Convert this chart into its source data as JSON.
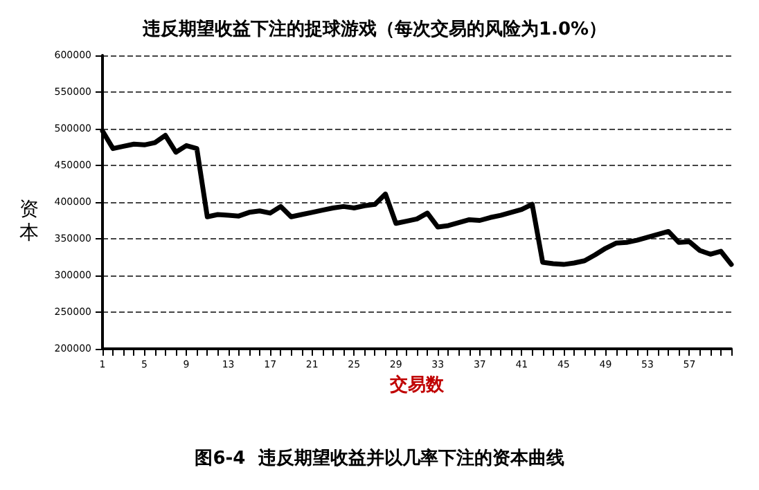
{
  "chart_data": {
    "type": "line",
    "title": "违反期望收益下注的捉球游戏（每次交易的风险为1.0%）",
    "xlabel": "交易数",
    "ylabel": "资本",
    "annotations": [
      "图6-4  违反期望收益并以几率下注的资本曲线"
    ],
    "categories": [
      "1",
      null,
      null,
      null,
      "5",
      null,
      null,
      null,
      "9",
      null,
      null,
      null,
      "13",
      null,
      null,
      null,
      "17",
      null,
      null,
      null,
      "21",
      null,
      null,
      null,
      "25",
      null,
      null,
      null,
      "29",
      null,
      null,
      null,
      "33",
      null,
      null,
      null,
      "37",
      null,
      null,
      null,
      "41",
      null,
      null,
      null,
      "45",
      null,
      null,
      null,
      "49",
      null,
      null,
      null,
      "53",
      null,
      null,
      null,
      "57",
      null,
      null,
      null,
      null
    ],
    "series": [
      {
        "color": "#000000",
        "values": [
          497000,
          473000,
          476000,
          479000,
          478000,
          481000,
          491000,
          468000,
          477000,
          473000,
          380000,
          383000,
          382000,
          381000,
          386000,
          388000,
          385000,
          394000,
          380000,
          383000,
          386000,
          389000,
          392000,
          394000,
          392000,
          395000,
          397000,
          411000,
          371000,
          374000,
          377000,
          385000,
          366000,
          368000,
          372000,
          376000,
          375000,
          379000,
          382000,
          386000,
          390000,
          397000,
          318000,
          316000,
          315000,
          317000,
          320000,
          328000,
          337000,
          344000,
          345000,
          348000,
          352000,
          356000,
          360000,
          345000,
          346000,
          334000,
          329000,
          333000,
          315000
        ]
      }
    ],
    "ylim": [
      200000,
      600000
    ],
    "yticks": [
      200000,
      250000,
      300000,
      350000,
      400000,
      450000,
      500000,
      550000,
      600000
    ],
    "grid": "y",
    "marker": "none",
    "line_style": "solid"
  }
}
